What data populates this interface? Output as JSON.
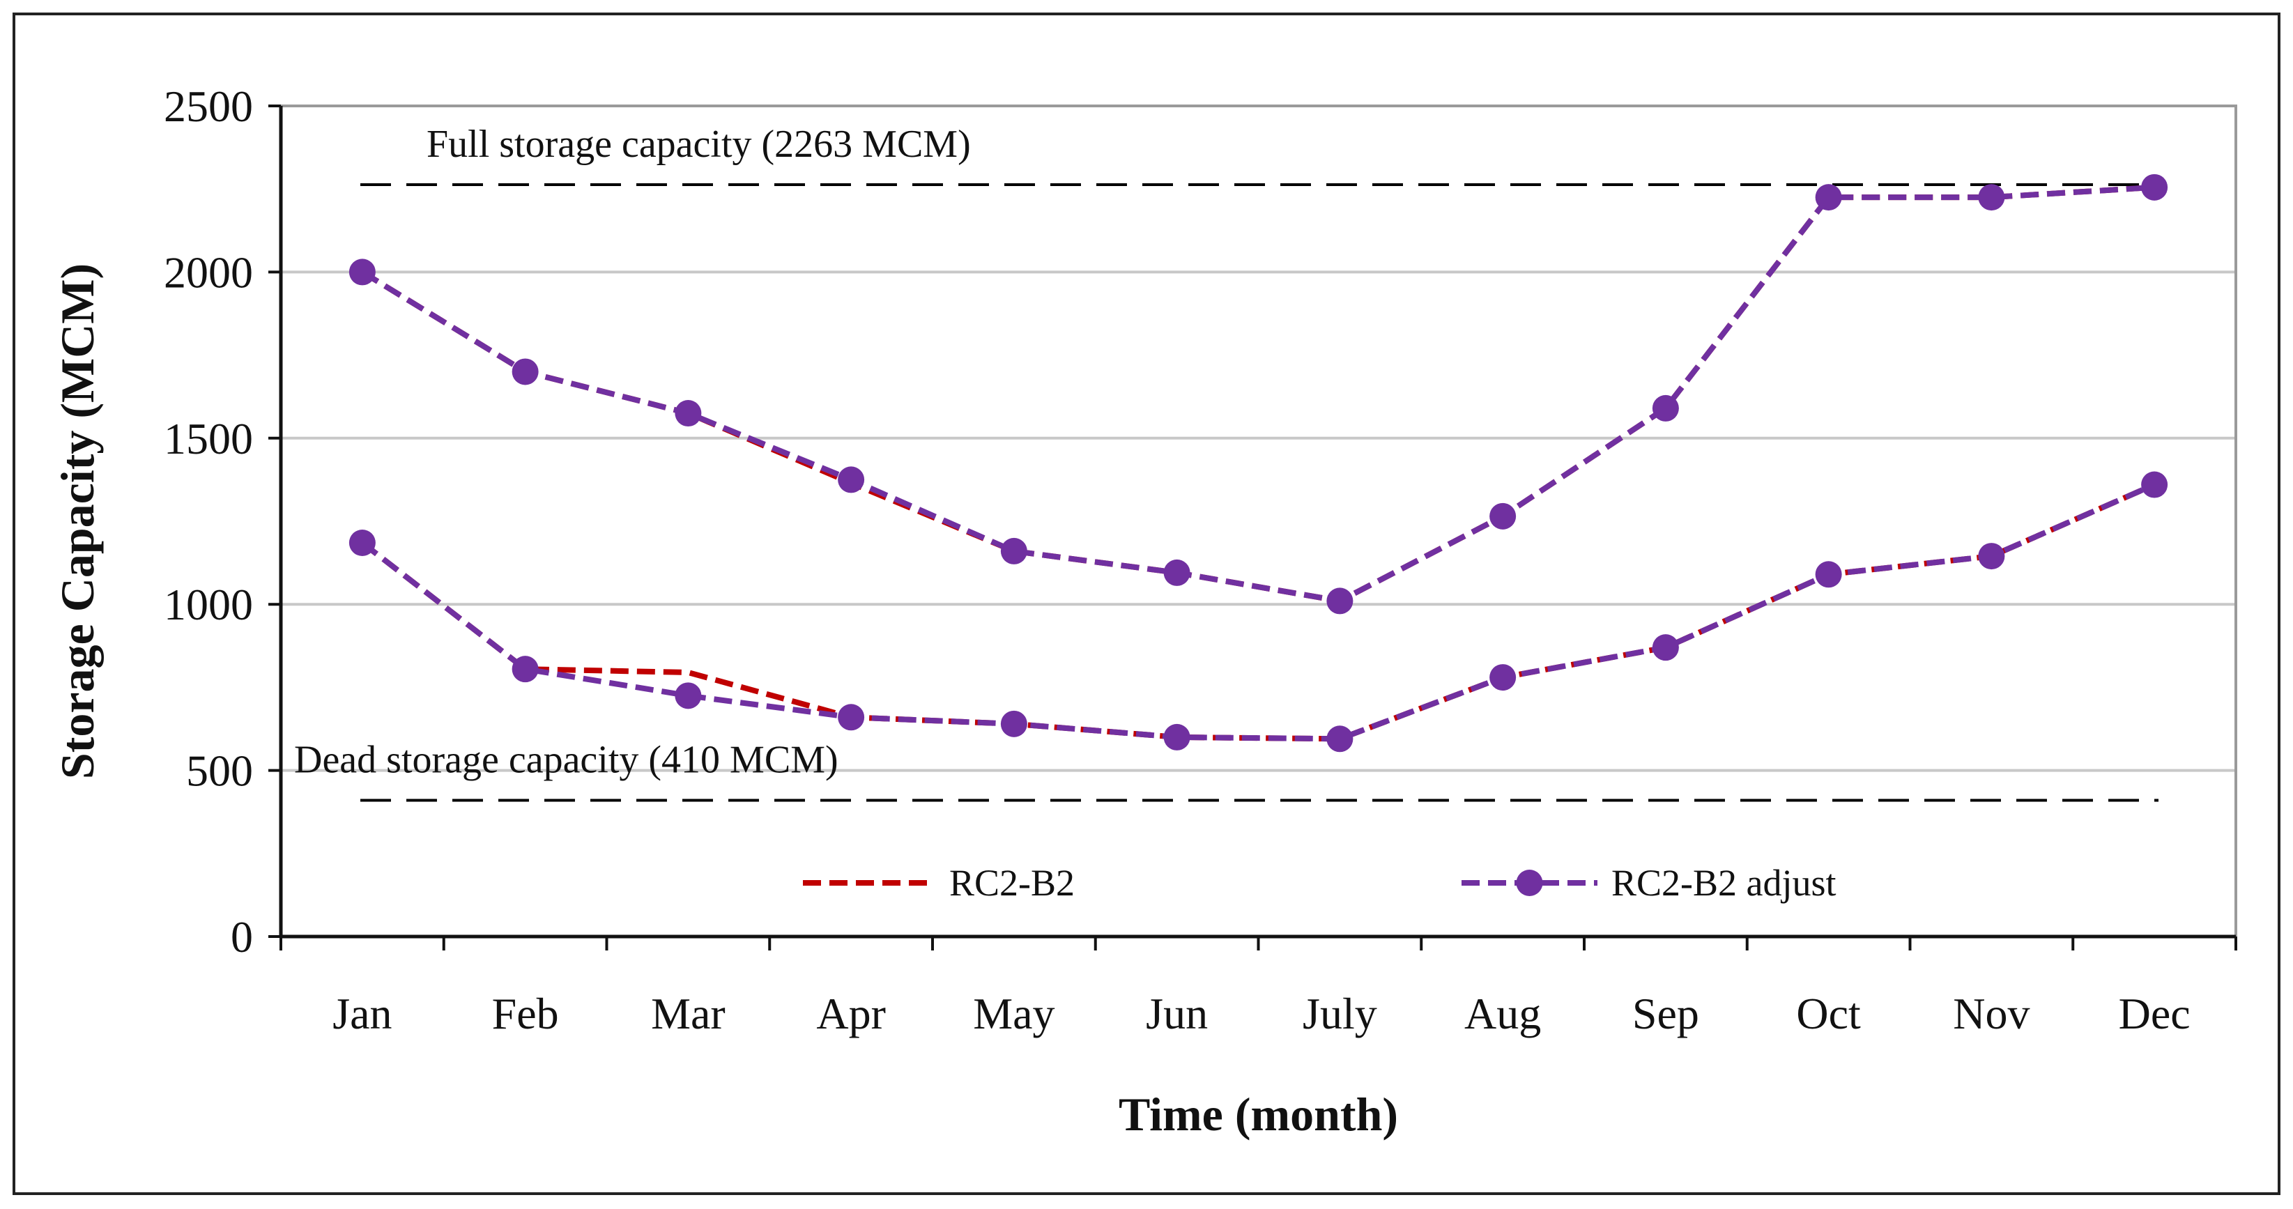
{
  "chart_data": {
    "type": "line",
    "title": "",
    "xlabel": "Time (month)",
    "ylabel": "Storage Capacity (MCM)",
    "ylim": [
      0,
      2500
    ],
    "yticks": [
      0,
      500,
      1000,
      1500,
      2000,
      2500
    ],
    "categories": [
      "Jan",
      "Feb",
      "Mar",
      "Apr",
      "May",
      "Jun",
      "July",
      "Aug",
      "Sep",
      "Oct",
      "Nov",
      "Dec"
    ],
    "grid": true,
    "legend_position": "bottom-center",
    "series": [
      {
        "name": "RC2-B2",
        "style": "dashed",
        "marker": "none",
        "color": "#c00000",
        "lines": [
          [
            2000,
            1700,
            1575,
            1365,
            1160,
            1095,
            1010,
            1265,
            1590,
            2225,
            2225,
            2255
          ],
          [
            1185,
            805,
            795,
            660,
            640,
            600,
            595,
            780,
            870,
            1090,
            1145,
            1360
          ]
        ]
      },
      {
        "name": "RC2-B2 adjust",
        "style": "dashed",
        "marker": "circle",
        "color": "#7030a0",
        "lines": [
          [
            2000,
            1700,
            1575,
            1375,
            1160,
            1095,
            1010,
            1265,
            1590,
            2225,
            2225,
            2255
          ],
          [
            1185,
            805,
            725,
            660,
            640,
            600,
            595,
            780,
            870,
            1090,
            1145,
            1360
          ]
        ]
      }
    ],
    "reference_lines": [
      {
        "name": "full-storage",
        "value": 2263,
        "label": "Full storage capacity (2263 MCM)",
        "color": "#000000"
      },
      {
        "name": "dead-storage",
        "value": 410,
        "label": "Dead storage capacity (410 MCM)",
        "color": "#000000"
      }
    ]
  }
}
